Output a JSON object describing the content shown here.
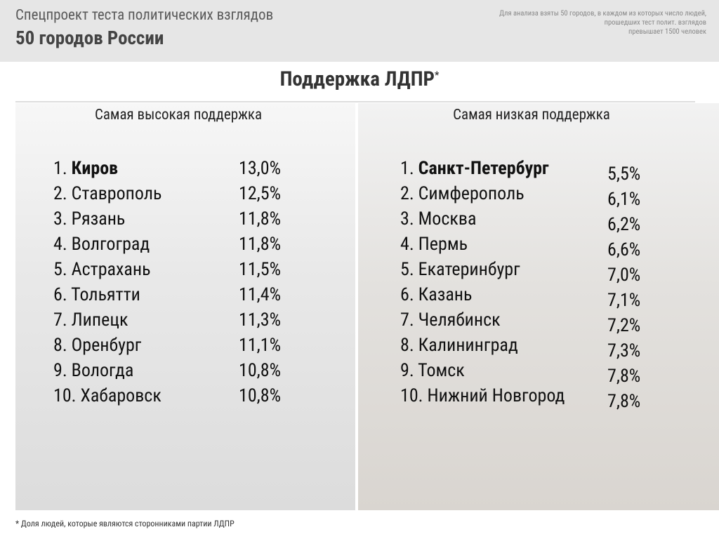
{
  "header": {
    "title": "Спецпроект теста политических взглядов",
    "subtitle": "50 городов России",
    "note": [
      "Для анализа взяты 50 городов, в каждом из которых число людей,",
      "прошедших тест полит. взглядов",
      "превышает 1500 человек"
    ]
  },
  "main_title": {
    "text": "Поддержка ЛДПР",
    "mark": "*"
  },
  "columns": [
    {
      "heading": "Самая высокая поддержка",
      "rows": [
        {
          "rank": "1.",
          "city": "Киров",
          "value": "13,0%"
        },
        {
          "rank": "2.",
          "city": "Ставрополь",
          "value": "12,5%"
        },
        {
          "rank": "3.",
          "city": "Рязань",
          "value": "11,8%"
        },
        {
          "rank": "4.",
          "city": "Волгоград",
          "value": "11,8%"
        },
        {
          "rank": "5.",
          "city": "Астрахань",
          "value": "11,5%"
        },
        {
          "rank": "6.",
          "city": "Тольятти",
          "value": "11,4%"
        },
        {
          "rank": "7.",
          "city": "Липецк",
          "value": "11,3%"
        },
        {
          "rank": "8.",
          "city": "Оренбург",
          "value": "11,1%"
        },
        {
          "rank": "9.",
          "city": "Вологда",
          "value": "10,8%"
        },
        {
          "rank": "10.",
          "city": "Хабаровск",
          "value": "10,8%"
        }
      ]
    },
    {
      "heading": "Самая низкая поддержка",
      "rows": [
        {
          "rank": "1.",
          "city": "Санкт-Петербург",
          "value": "5,5%"
        },
        {
          "rank": "2.",
          "city": "Симферополь",
          "value": "6,1%"
        },
        {
          "rank": "3.",
          "city": "Москва",
          "value": "6,2%"
        },
        {
          "rank": "4.",
          "city": "Пермь",
          "value": "6,6%"
        },
        {
          "rank": "5.",
          "city": "Екатеринбург",
          "value": "7,0%"
        },
        {
          "rank": "6.",
          "city": "Казань",
          "value": "7,1%"
        },
        {
          "rank": "7.",
          "city": "Челябинск",
          "value": "7,2%"
        },
        {
          "rank": "8.",
          "city": "Калининград",
          "value": "7,3%"
        },
        {
          "rank": "9.",
          "city": "Томск",
          "value": "7,8%"
        },
        {
          "rank": "10.",
          "city": "Нижний Новгород",
          "value": "7,8%"
        }
      ]
    }
  ],
  "footnote": "* Доля людей, которые являются сторонниками партии ЛДПР"
}
